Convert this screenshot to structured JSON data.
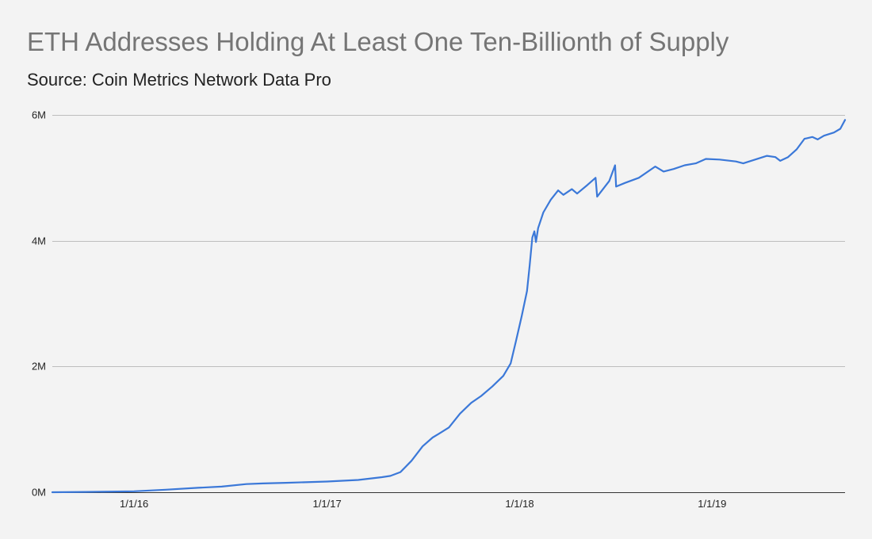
{
  "chart_data": {
    "type": "line",
    "title": "ETH Addresses Holding At Least One Ten-Billionth of Supply",
    "subtitle": "Source: Coin Metrics Network Data Pro",
    "xlabel": "",
    "ylabel": "",
    "x_range": [
      "2015-07-30",
      "2019-09-10"
    ],
    "ylim": [
      0,
      6000000
    ],
    "y_ticks": [
      {
        "value": 0,
        "label": "0M"
      },
      {
        "value": 2000000,
        "label": "2M"
      },
      {
        "value": 4000000,
        "label": "4M"
      },
      {
        "value": 6000000,
        "label": "6M"
      }
    ],
    "x_ticks": [
      {
        "date": "2016-01-01",
        "label": "1/1/16"
      },
      {
        "date": "2017-01-01",
        "label": "1/1/17"
      },
      {
        "date": "2018-01-01",
        "label": "1/1/18"
      },
      {
        "date": "2019-01-01",
        "label": "1/1/19"
      }
    ],
    "grid": "horizontal",
    "legend": "none",
    "series": [
      {
        "color": "#3b78d8",
        "points": [
          [
            "2015-07-30",
            0
          ],
          [
            "2015-10-01",
            5000
          ],
          [
            "2016-01-01",
            15000
          ],
          [
            "2016-03-01",
            40000
          ],
          [
            "2016-05-01",
            70000
          ],
          [
            "2016-06-15",
            90000
          ],
          [
            "2016-08-01",
            130000
          ],
          [
            "2016-09-01",
            140000
          ],
          [
            "2016-10-15",
            150000
          ],
          [
            "2017-01-01",
            170000
          ],
          [
            "2017-03-01",
            195000
          ],
          [
            "2017-04-15",
            240000
          ],
          [
            "2017-05-01",
            260000
          ],
          [
            "2017-05-20",
            320000
          ],
          [
            "2017-06-10",
            500000
          ],
          [
            "2017-07-01",
            730000
          ],
          [
            "2017-07-20",
            870000
          ],
          [
            "2017-08-01",
            930000
          ],
          [
            "2017-08-20",
            1030000
          ],
          [
            "2017-09-10",
            1250000
          ],
          [
            "2017-10-01",
            1420000
          ],
          [
            "2017-10-20",
            1530000
          ],
          [
            "2017-11-10",
            1680000
          ],
          [
            "2017-12-01",
            1850000
          ],
          [
            "2017-12-15",
            2050000
          ],
          [
            "2017-12-25",
            2400000
          ],
          [
            "2018-01-05",
            2800000
          ],
          [
            "2018-01-15",
            3200000
          ],
          [
            "2018-01-20",
            3600000
          ],
          [
            "2018-01-25",
            4050000
          ],
          [
            "2018-01-29",
            4150000
          ],
          [
            "2018-02-01",
            3980000
          ],
          [
            "2018-02-05",
            4200000
          ],
          [
            "2018-02-15",
            4450000
          ],
          [
            "2018-03-01",
            4650000
          ],
          [
            "2018-03-15",
            4800000
          ],
          [
            "2018-03-25",
            4730000
          ],
          [
            "2018-04-10",
            4820000
          ],
          [
            "2018-04-20",
            4750000
          ],
          [
            "2018-05-10",
            4890000
          ],
          [
            "2018-05-25",
            5000000
          ],
          [
            "2018-05-28",
            4700000
          ],
          [
            "2018-06-20",
            4950000
          ],
          [
            "2018-07-01",
            5200000
          ],
          [
            "2018-07-03",
            4860000
          ],
          [
            "2018-07-20",
            4920000
          ],
          [
            "2018-08-15",
            5000000
          ],
          [
            "2018-09-15",
            5180000
          ],
          [
            "2018-10-01",
            5100000
          ],
          [
            "2018-10-20",
            5140000
          ],
          [
            "2018-11-10",
            5200000
          ],
          [
            "2018-12-01",
            5230000
          ],
          [
            "2018-12-20",
            5300000
          ],
          [
            "2019-01-15",
            5290000
          ],
          [
            "2019-02-15",
            5260000
          ],
          [
            "2019-03-01",
            5230000
          ],
          [
            "2019-03-20",
            5280000
          ],
          [
            "2019-04-15",
            5350000
          ],
          [
            "2019-05-01",
            5330000
          ],
          [
            "2019-05-10",
            5270000
          ],
          [
            "2019-05-25",
            5330000
          ],
          [
            "2019-06-10",
            5450000
          ],
          [
            "2019-06-25",
            5620000
          ],
          [
            "2019-07-10",
            5650000
          ],
          [
            "2019-07-20",
            5610000
          ],
          [
            "2019-08-01",
            5670000
          ],
          [
            "2019-08-20",
            5720000
          ],
          [
            "2019-09-01",
            5780000
          ],
          [
            "2019-09-10",
            5920000
          ]
        ]
      }
    ]
  }
}
